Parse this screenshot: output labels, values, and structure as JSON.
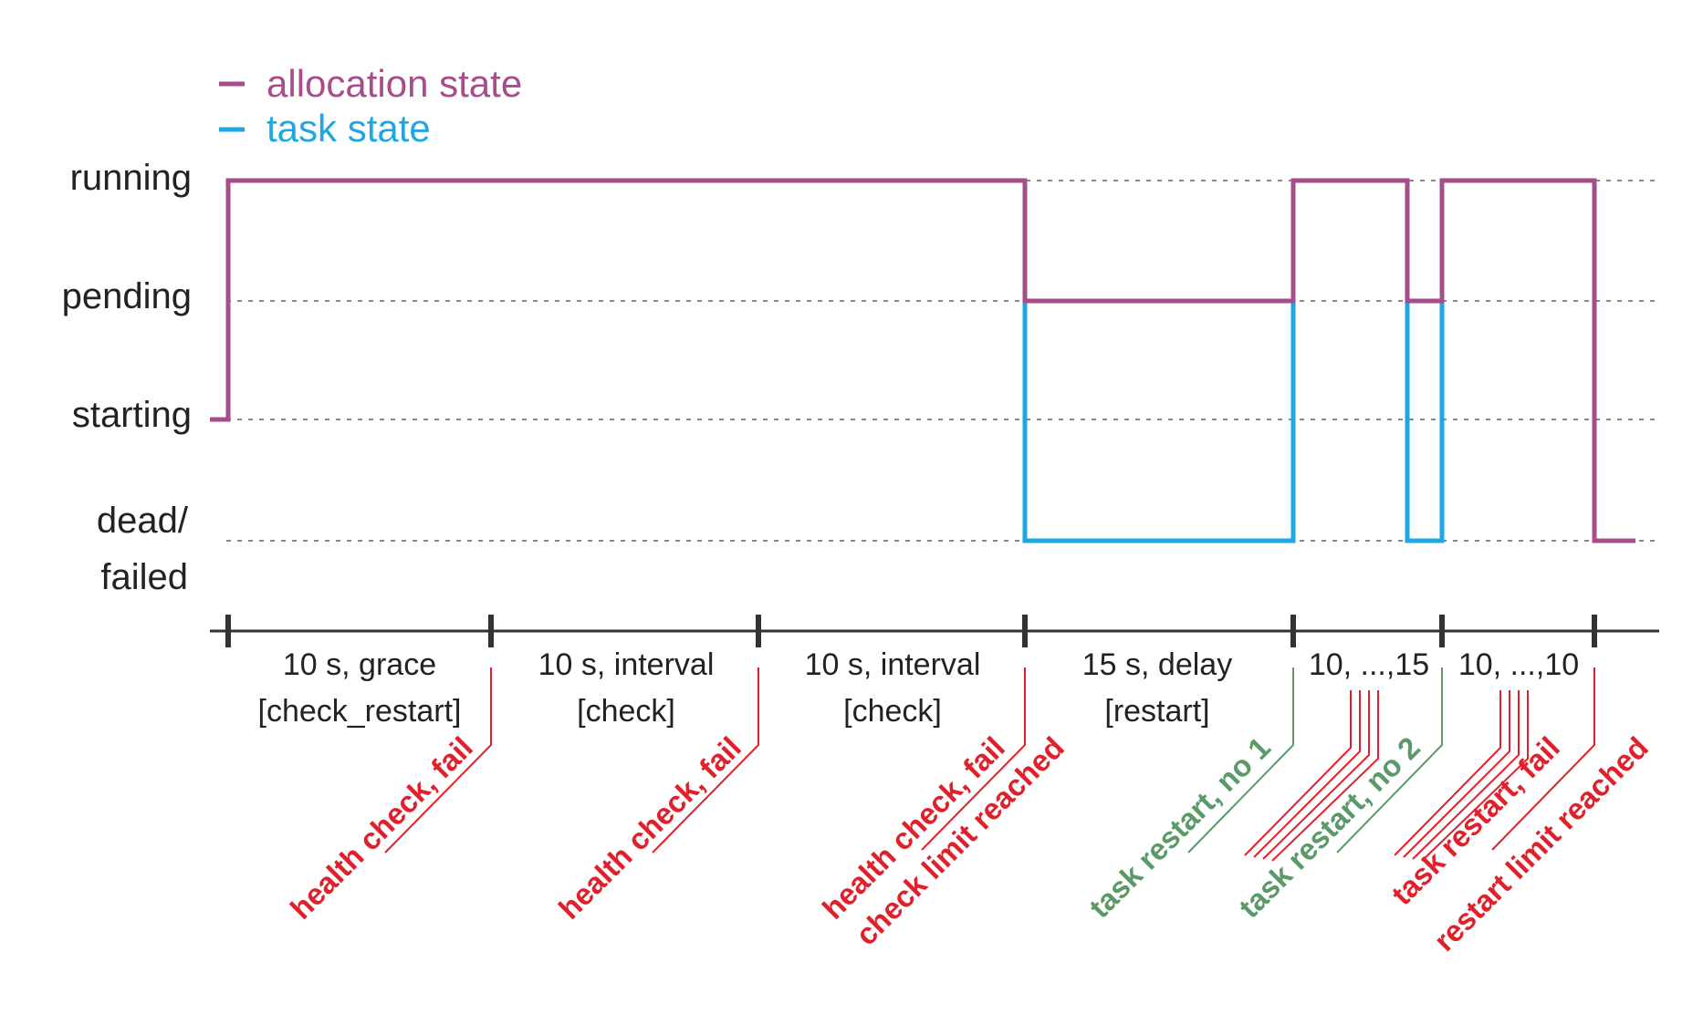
{
  "legend": [
    {
      "label": "allocation state",
      "color": "#a64d8a"
    },
    {
      "label": "task state",
      "color": "#1ea7e1"
    }
  ],
  "levels": [
    {
      "key": "running",
      "lines": [
        "running"
      ]
    },
    {
      "key": "pending",
      "lines": [
        "pending"
      ]
    },
    {
      "key": "starting",
      "lines": [
        "starting"
      ]
    },
    {
      "key": "dead",
      "lines": [
        "dead/",
        "failed"
      ]
    }
  ],
  "segments": [
    {
      "line1": "10 s, grace",
      "line2": "[check_restart]"
    },
    {
      "line1": "10 s, interval",
      "line2": "[check]"
    },
    {
      "line1": "10 s, interval",
      "line2": "[check]"
    },
    {
      "line1": "15 s, delay",
      "line2": "[restart]"
    },
    {
      "line1": "10, ...,15",
      "line2": ""
    },
    {
      "line1": "10, ...,10",
      "line2": ""
    }
  ],
  "events": [
    {
      "lines": [
        "health check, fail"
      ],
      "status": "fail"
    },
    {
      "lines": [
        "health check, fail"
      ],
      "status": "fail"
    },
    {
      "lines": [
        "health check, fail",
        "check limit reached"
      ],
      "status": "fail"
    },
    {
      "lines": [
        "task restart, no 1"
      ],
      "status": "ok"
    },
    {
      "lines": [
        "task restart, no 2"
      ],
      "status": "ok"
    },
    {
      "lines": [
        "task restart, fail",
        "restart limit reached"
      ],
      "status": "fail"
    }
  ],
  "colors": {
    "allocation": "#a64d8a",
    "task": "#1ea7e1",
    "fail": "#e0202a",
    "ok": "#5a9a68",
    "axis": "#333333",
    "grid": "#888888",
    "text": "#222222"
  }
}
